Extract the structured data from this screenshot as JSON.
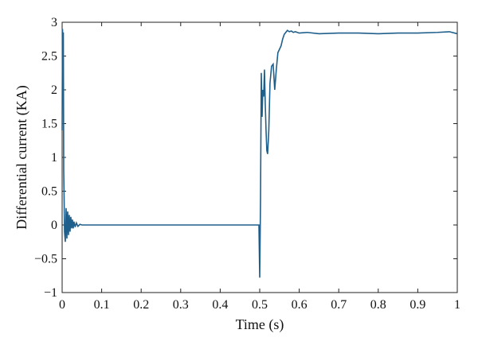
{
  "chart_data": {
    "type": "line",
    "xlabel": "Time (s)",
    "ylabel": "Differential current (KA)",
    "xlim": [
      0,
      1
    ],
    "ylim": [
      -1,
      3
    ],
    "x_ticks": [
      0,
      0.1,
      0.2,
      0.3,
      0.4,
      0.5,
      0.6,
      0.7,
      0.8,
      0.9,
      1
    ],
    "x_tick_labels": [
      "0",
      "0.1",
      "0.2",
      "0.3",
      "0.4",
      "0.5",
      "0.6",
      "0.7",
      "0.8",
      "0.9",
      "1"
    ],
    "y_ticks": [
      -1,
      -0.5,
      0,
      0.5,
      1,
      1.5,
      2,
      2.5,
      3
    ],
    "y_tick_labels": [
      "−1",
      "−0.5",
      "0",
      "0.5",
      "1",
      "1.5",
      "2",
      "2.5",
      "3"
    ],
    "grid": false,
    "line_color": "#1f5f8b",
    "series": [
      {
        "x": [
          0,
          0.001,
          0.002,
          0.003,
          0.004,
          0.005,
          0.006,
          0.008,
          0.01,
          0.012,
          0.014,
          0.016,
          0.018,
          0.02,
          0.022,
          0.024,
          0.026,
          0.028,
          0.03,
          0.033,
          0.036,
          0.04,
          0.045,
          0.05,
          0.06,
          0.1,
          0.2,
          0.3,
          0.4,
          0.495,
          0.498,
          0.5,
          0.502,
          0.504,
          0.506,
          0.508,
          0.51,
          0.512,
          0.514,
          0.516,
          0.518,
          0.52,
          0.523,
          0.526,
          0.53,
          0.534,
          0.538,
          0.542,
          0.546,
          0.55,
          0.554,
          0.558,
          0.562,
          0.566,
          0.57,
          0.575,
          0.58,
          0.585,
          0.59,
          0.6,
          0.62,
          0.65,
          0.7,
          0.75,
          0.8,
          0.85,
          0.9,
          0.95,
          0.98,
          1.0
        ],
        "y": [
          1.4,
          2.9,
          2.1,
          2.85,
          0.8,
          0.4,
          -0.1,
          -0.25,
          0.25,
          -0.2,
          0.2,
          -0.15,
          0.15,
          -0.1,
          0.12,
          -0.05,
          0.08,
          -0.05,
          0.05,
          -0.03,
          0.03,
          -0.02,
          0.01,
          0.0,
          0.0,
          0.0,
          0.0,
          0.0,
          0.0,
          0.0,
          0.0,
          -0.78,
          0.35,
          2.25,
          1.6,
          2.0,
          1.9,
          2.3,
          1.8,
          1.4,
          1.1,
          1.05,
          1.4,
          2.1,
          2.35,
          2.38,
          2.0,
          2.3,
          2.55,
          2.6,
          2.65,
          2.75,
          2.82,
          2.85,
          2.88,
          2.86,
          2.87,
          2.85,
          2.86,
          2.84,
          2.85,
          2.83,
          2.84,
          2.84,
          2.83,
          2.84,
          2.84,
          2.85,
          2.86,
          2.83
        ]
      }
    ]
  }
}
